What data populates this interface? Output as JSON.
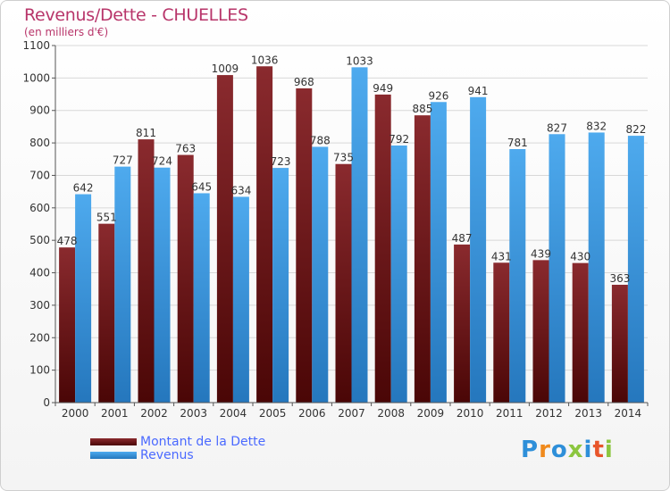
{
  "chart_data": {
    "type": "bar",
    "title": "Revenus/Dette - CHUELLES",
    "subtitle": "(en milliers d'€)",
    "xlabel": "",
    "ylabel": "",
    "ylim": [
      0,
      1100
    ],
    "ytick_step": 100,
    "grid": true,
    "legend_position": "bottom-left",
    "categories": [
      "2000",
      "2001",
      "2002",
      "2003",
      "2004",
      "2005",
      "2006",
      "2007",
      "2008",
      "2009",
      "2010",
      "2011",
      "2012",
      "2013",
      "2014"
    ],
    "series": [
      {
        "name": "Montant de la Dette",
        "color": "#7a1a1e",
        "values": [
          478,
          551,
          811,
          763,
          1009,
          1036,
          968,
          735,
          949,
          885,
          487,
          431,
          439,
          430,
          363
        ]
      },
      {
        "name": "Revenus",
        "color": "#3d9be0",
        "values": [
          642,
          727,
          724,
          645,
          634,
          723,
          788,
          1033,
          792,
          926,
          941,
          781,
          827,
          832,
          822
        ]
      }
    ]
  },
  "logo": {
    "text": "Proxiti",
    "letters": [
      "P",
      "r",
      "o",
      "x",
      "i",
      "t",
      "i"
    ],
    "colors": [
      "#2e8fd9",
      "#f08a1c",
      "#2e8fd9",
      "#8cc63f",
      "#2e8fd9",
      "#e8552a",
      "#8cc63f"
    ]
  }
}
